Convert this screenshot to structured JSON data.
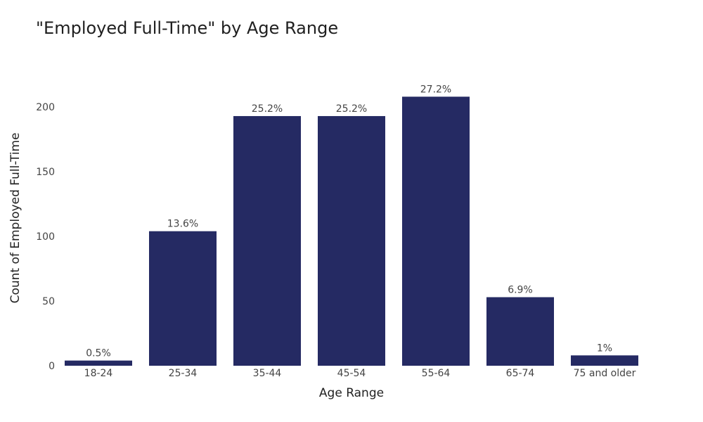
{
  "chart_data": {
    "type": "bar",
    "title": "\"Employed Full-Time\" by Age Range",
    "xlabel": "Age Range",
    "ylabel": "Count of Employed Full-Time",
    "categories": [
      "18-24",
      "25-34",
      "35-44",
      "45-54",
      "55-64",
      "65-74",
      "75 and older"
    ],
    "values": [
      4,
      104,
      193,
      193,
      208,
      53,
      8
    ],
    "data_labels": [
      "0.5%",
      "13.6%",
      "25.2%",
      "25.2%",
      "27.2%",
      "6.9%",
      "1%"
    ],
    "ylim": [
      0,
      230
    ],
    "yticks": [
      0,
      50,
      100,
      150,
      200
    ],
    "bar_color": "#252a63",
    "grid": false,
    "legend": "none"
  }
}
